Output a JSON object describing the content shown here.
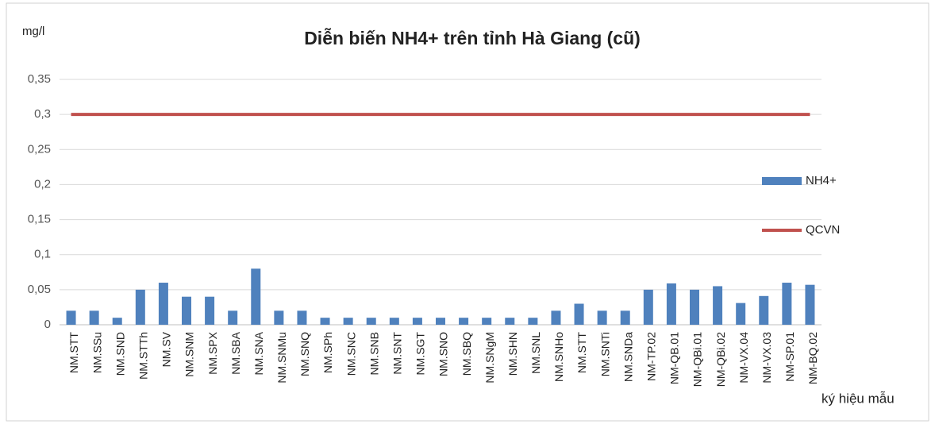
{
  "chart_data": {
    "type": "bar",
    "title": "Diễn biến NH4+ trên tỉnh Hà Giang (cũ)",
    "y_axis_label": "mg/l",
    "x_axis_label": "ký hiệu mẫu",
    "categories": [
      "NM.STT",
      "NM.SSu",
      "NM.SND",
      "NM.STTh",
      "NM.SV",
      "NM.SNM",
      "NM.SPX",
      "NM.SBA",
      "NM.SNA",
      "NM.SNMu",
      "NM.SNQ",
      "NM.SPh",
      "NM.SNC",
      "NM.SNB",
      "NM.SNT",
      "NM.SGT",
      "NM.SNO",
      "NM.SBQ",
      "NM.SNgM",
      "NM.SHN",
      "NM.SNL",
      "NM.SNHo",
      "NM.STT",
      "NM.SNTi",
      "NM.SNDa",
      "NM-TP.02",
      "NM-QB.01",
      "NM-QBi.01",
      "NM-QBi.02",
      "NM-VX.04",
      "NM-VX.03",
      "NM-SP.01",
      "NM-BQ.02"
    ],
    "series": [
      {
        "name": "NH4+",
        "type": "bar",
        "color": "#4f81bd",
        "values": [
          0.02,
          0.02,
          0.01,
          0.05,
          0.06,
          0.04,
          0.04,
          0.02,
          0.08,
          0.02,
          0.02,
          0.01,
          0.01,
          0.01,
          0.01,
          0.01,
          0.01,
          0.01,
          0.01,
          0.01,
          0.01,
          0.02,
          0.03,
          0.02,
          0.02,
          0.05,
          0.059,
          0.05,
          0.055,
          0.031,
          0.041,
          0.06,
          0.057
        ]
      },
      {
        "name": "QCVN",
        "type": "line",
        "color": "#c0504d",
        "values": [
          0.3,
          0.3,
          0.3,
          0.3,
          0.3,
          0.3,
          0.3,
          0.3,
          0.3,
          0.3,
          0.3,
          0.3,
          0.3,
          0.3,
          0.3,
          0.3,
          0.3,
          0.3,
          0.3,
          0.3,
          0.3,
          0.3,
          0.3,
          0.3,
          0.3,
          0.3,
          0.3,
          0.3,
          0.3,
          0.3,
          0.3,
          0.3,
          0.3
        ]
      }
    ],
    "ylim": [
      0,
      0.35
    ],
    "yticks": [
      0,
      {
        "value": 0.05,
        "label": "0,05"
      },
      {
        "value": 0.1,
        "label": "0,1"
      },
      {
        "value": 0.15,
        "label": "0,15"
      },
      {
        "value": 0.2,
        "label": "0,2"
      },
      {
        "value": 0.25,
        "label": "0,25"
      },
      {
        "value": 0.3,
        "label": "0,3"
      },
      {
        "value": 0.35,
        "label": "0,35"
      }
    ],
    "grid": true,
    "legend": "right"
  }
}
